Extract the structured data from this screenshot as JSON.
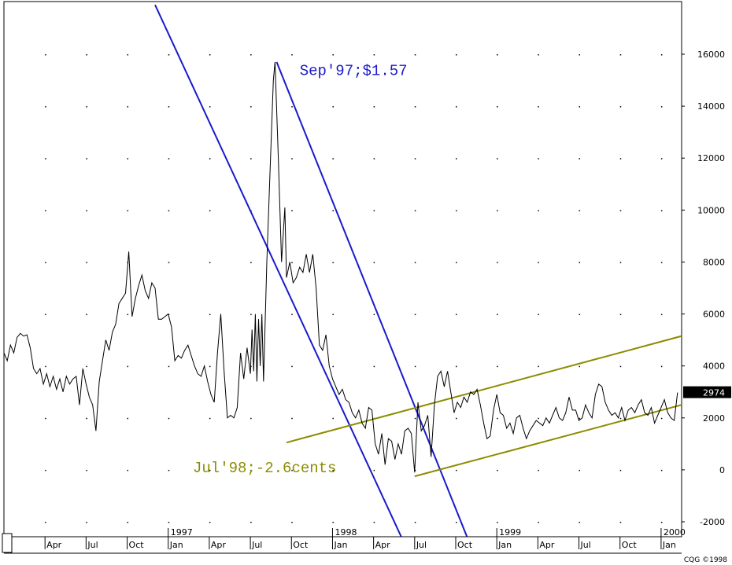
{
  "chart_data": {
    "type": "line",
    "title": "",
    "xlabel": "",
    "ylabel": "",
    "ylim": [
      -2600,
      18100
    ],
    "xlim": [
      1996.0,
      2000.125
    ],
    "grid": true,
    "y_ticks": [
      -2000,
      0,
      2000,
      4000,
      6000,
      8000,
      10000,
      12000,
      14000,
      16000
    ],
    "x_year_labels": [
      {
        "label": "1997",
        "x": 1997.0
      },
      {
        "label": "1998",
        "x": 1998.0
      },
      {
        "label": "1999",
        "x": 1999.0
      },
      {
        "label": "2000",
        "x": 2000.0
      }
    ],
    "x_month_labels": [
      {
        "label": "Apr",
        "x": 1996.25
      },
      {
        "label": "Jul",
        "x": 1996.5
      },
      {
        "label": "Oct",
        "x": 1996.75
      },
      {
        "label": "Jan",
        "x": 1997.0
      },
      {
        "label": "Apr",
        "x": 1997.25
      },
      {
        "label": "Jul",
        "x": 1997.5
      },
      {
        "label": "Oct",
        "x": 1997.75
      },
      {
        "label": "Jan",
        "x": 1998.0
      },
      {
        "label": "Apr",
        "x": 1998.25
      },
      {
        "label": "Jul",
        "x": 1998.5
      },
      {
        "label": "Oct",
        "x": 1998.75
      },
      {
        "label": "Jan",
        "x": 1999.0
      },
      {
        "label": "Apr",
        "x": 1999.25
      },
      {
        "label": "Jul",
        "x": 1999.5
      },
      {
        "label": "Oct",
        "x": 1999.75
      },
      {
        "label": "Jan",
        "x": 2000.0
      }
    ],
    "last_value_label": "2974",
    "series": [
      {
        "color": "#000000",
        "points": [
          [
            1996.0,
            4500
          ],
          [
            1996.02,
            4200
          ],
          [
            1996.04,
            4800
          ],
          [
            1996.06,
            4500
          ],
          [
            1996.08,
            5100
          ],
          [
            1996.1,
            5250
          ],
          [
            1996.12,
            5150
          ],
          [
            1996.14,
            5200
          ],
          [
            1996.16,
            4700
          ],
          [
            1996.18,
            3900
          ],
          [
            1996.2,
            3700
          ],
          [
            1996.22,
            3900
          ],
          [
            1996.24,
            3300
          ],
          [
            1996.26,
            3700
          ],
          [
            1996.28,
            3200
          ],
          [
            1996.3,
            3600
          ],
          [
            1996.32,
            3100
          ],
          [
            1996.34,
            3500
          ],
          [
            1996.36,
            3000
          ],
          [
            1996.38,
            3600
          ],
          [
            1996.4,
            3300
          ],
          [
            1996.42,
            3500
          ],
          [
            1996.44,
            3600
          ],
          [
            1996.46,
            2500
          ],
          [
            1996.48,
            3900
          ],
          [
            1996.5,
            3300
          ],
          [
            1996.52,
            2800
          ],
          [
            1996.54,
            2500
          ],
          [
            1996.56,
            1500
          ],
          [
            1996.58,
            3400
          ],
          [
            1996.6,
            4200
          ],
          [
            1996.62,
            5000
          ],
          [
            1996.64,
            4600
          ],
          [
            1996.66,
            5300
          ],
          [
            1996.68,
            5600
          ],
          [
            1996.7,
            6400
          ],
          [
            1996.72,
            6600
          ],
          [
            1996.74,
            6800
          ],
          [
            1996.76,
            8400
          ],
          [
            1996.78,
            5900
          ],
          [
            1996.8,
            6600
          ],
          [
            1996.82,
            7100
          ],
          [
            1996.84,
            7500
          ],
          [
            1996.86,
            6900
          ],
          [
            1996.88,
            6600
          ],
          [
            1996.9,
            7200
          ],
          [
            1996.92,
            7000
          ],
          [
            1996.94,
            5800
          ],
          [
            1996.96,
            5800
          ],
          [
            1996.98,
            5900
          ],
          [
            1997.0,
            6000
          ],
          [
            1997.02,
            5500
          ],
          [
            1997.04,
            4200
          ],
          [
            1997.06,
            4400
          ],
          [
            1997.08,
            4300
          ],
          [
            1997.1,
            4600
          ],
          [
            1997.12,
            4800
          ],
          [
            1997.14,
            4400
          ],
          [
            1997.16,
            4000
          ],
          [
            1997.18,
            3700
          ],
          [
            1997.2,
            3600
          ],
          [
            1997.22,
            4000
          ],
          [
            1997.24,
            3400
          ],
          [
            1997.26,
            2900
          ],
          [
            1997.28,
            2600
          ],
          [
            1997.3,
            4500
          ],
          [
            1997.32,
            6000
          ],
          [
            1997.34,
            3800
          ],
          [
            1997.36,
            2000
          ],
          [
            1997.38,
            2100
          ],
          [
            1997.4,
            2000
          ],
          [
            1997.42,
            2400
          ],
          [
            1997.44,
            4500
          ],
          [
            1997.46,
            3500
          ],
          [
            1997.48,
            4700
          ],
          [
            1997.5,
            3700
          ],
          [
            1997.51,
            5400
          ],
          [
            1997.52,
            3800
          ],
          [
            1997.53,
            6000
          ],
          [
            1997.54,
            3400
          ],
          [
            1997.55,
            5800
          ],
          [
            1997.56,
            4000
          ],
          [
            1997.57,
            6000
          ],
          [
            1997.58,
            3400
          ],
          [
            1997.6,
            8000
          ],
          [
            1997.62,
            11500
          ],
          [
            1997.64,
            15000
          ],
          [
            1997.65,
            15700
          ],
          [
            1997.67,
            12000
          ],
          [
            1997.69,
            8000
          ],
          [
            1997.71,
            10100
          ],
          [
            1997.72,
            7400
          ],
          [
            1997.74,
            8000
          ],
          [
            1997.76,
            7200
          ],
          [
            1997.78,
            7400
          ],
          [
            1997.8,
            7800
          ],
          [
            1997.82,
            7600
          ],
          [
            1997.84,
            8300
          ],
          [
            1997.86,
            7600
          ],
          [
            1997.88,
            8300
          ],
          [
            1997.9,
            7000
          ],
          [
            1997.92,
            4800
          ],
          [
            1997.94,
            4600
          ],
          [
            1997.96,
            5200
          ],
          [
            1997.98,
            4000
          ],
          [
            1998.0,
            3500
          ],
          [
            1998.02,
            3200
          ],
          [
            1998.04,
            2900
          ],
          [
            1998.06,
            3100
          ],
          [
            1998.08,
            2700
          ],
          [
            1998.1,
            2600
          ],
          [
            1998.12,
            2200
          ],
          [
            1998.14,
            2000
          ],
          [
            1998.16,
            2300
          ],
          [
            1998.18,
            1800
          ],
          [
            1998.2,
            1600
          ],
          [
            1998.22,
            2400
          ],
          [
            1998.24,
            2300
          ],
          [
            1998.26,
            1000
          ],
          [
            1998.28,
            600
          ],
          [
            1998.3,
            1400
          ],
          [
            1998.32,
            200
          ],
          [
            1998.34,
            1200
          ],
          [
            1998.36,
            1100
          ],
          [
            1998.38,
            400
          ],
          [
            1998.4,
            1000
          ],
          [
            1998.42,
            600
          ],
          [
            1998.44,
            1500
          ],
          [
            1998.46,
            1600
          ],
          [
            1998.48,
            1400
          ],
          [
            1998.5,
            -100
          ],
          [
            1998.52,
            2600
          ],
          [
            1998.54,
            1500
          ],
          [
            1998.56,
            1700
          ],
          [
            1998.58,
            2100
          ],
          [
            1998.6,
            500
          ],
          [
            1998.62,
            2500
          ],
          [
            1998.64,
            3600
          ],
          [
            1998.66,
            3800
          ],
          [
            1998.68,
            3200
          ],
          [
            1998.7,
            3800
          ],
          [
            1998.72,
            3000
          ],
          [
            1998.74,
            2200
          ],
          [
            1998.76,
            2600
          ],
          [
            1998.78,
            2400
          ],
          [
            1998.8,
            2800
          ],
          [
            1998.82,
            2600
          ],
          [
            1998.84,
            3000
          ],
          [
            1998.86,
            2900
          ],
          [
            1998.88,
            3100
          ],
          [
            1998.9,
            2500
          ],
          [
            1998.92,
            1800
          ],
          [
            1998.94,
            1200
          ],
          [
            1998.96,
            1300
          ],
          [
            1998.98,
            2300
          ],
          [
            1999.0,
            2900
          ],
          [
            1999.02,
            2200
          ],
          [
            1999.04,
            2100
          ],
          [
            1999.06,
            1600
          ],
          [
            1999.08,
            1800
          ],
          [
            1999.1,
            1400
          ],
          [
            1999.12,
            2000
          ],
          [
            1999.14,
            2100
          ],
          [
            1999.16,
            1600
          ],
          [
            1999.18,
            1200
          ],
          [
            1999.2,
            1500
          ],
          [
            1999.22,
            1700
          ],
          [
            1999.24,
            1900
          ],
          [
            1999.26,
            1800
          ],
          [
            1999.28,
            1700
          ],
          [
            1999.3,
            2000
          ],
          [
            1999.32,
            1800
          ],
          [
            1999.34,
            2100
          ],
          [
            1999.36,
            2400
          ],
          [
            1999.38,
            2000
          ],
          [
            1999.4,
            1900
          ],
          [
            1999.42,
            2200
          ],
          [
            1999.44,
            2800
          ],
          [
            1999.46,
            2300
          ],
          [
            1999.48,
            2300
          ],
          [
            1999.5,
            1900
          ],
          [
            1999.52,
            2000
          ],
          [
            1999.54,
            2500
          ],
          [
            1999.56,
            2200
          ],
          [
            1999.58,
            2000
          ],
          [
            1999.6,
            2900
          ],
          [
            1999.62,
            3300
          ],
          [
            1999.64,
            3200
          ],
          [
            1999.66,
            2600
          ],
          [
            1999.68,
            2300
          ],
          [
            1999.7,
            2100
          ],
          [
            1999.72,
            2200
          ],
          [
            1999.74,
            2000
          ],
          [
            1999.76,
            2400
          ],
          [
            1999.78,
            1900
          ],
          [
            1999.8,
            2300
          ],
          [
            1999.82,
            2400
          ],
          [
            1999.84,
            2200
          ],
          [
            1999.86,
            2500
          ],
          [
            1999.88,
            2700
          ],
          [
            1999.9,
            2200
          ],
          [
            1999.92,
            2100
          ],
          [
            1999.94,
            2400
          ],
          [
            1999.96,
            1800
          ],
          [
            1999.98,
            2100
          ],
          [
            2000.0,
            2400
          ],
          [
            2000.02,
            2700
          ],
          [
            2000.04,
            2200
          ],
          [
            2000.06,
            2000
          ],
          [
            2000.08,
            1900
          ],
          [
            2000.1,
            2974
          ]
        ]
      }
    ],
    "trend_lines": [
      {
        "color": "#1a1acc",
        "from": [
          1996.92,
          17900
        ],
        "to": [
          1998.42,
          -2600
        ]
      },
      {
        "color": "#1a1acc",
        "from": [
          1997.66,
          15700
        ],
        "to": [
          1998.82,
          -2600
        ]
      },
      {
        "color": "#8c8c00",
        "from": [
          1997.72,
          1050
        ],
        "to": [
          2000.125,
          5150
        ]
      },
      {
        "color": "#8c8c00",
        "from": [
          1998.5,
          -250
        ],
        "to": [
          2000.125,
          2500
        ]
      }
    ],
    "annotations": [
      {
        "text": "Sep'97;$1.57",
        "color": "#1a1acc",
        "x": 1997.8,
        "y": 15200
      },
      {
        "text": "Jul'98;-2.6cents",
        "color": "#8c8c00",
        "x": 1997.15,
        "y": -100
      }
    ]
  },
  "footer": {
    "copyright": "CQG ©1998"
  }
}
